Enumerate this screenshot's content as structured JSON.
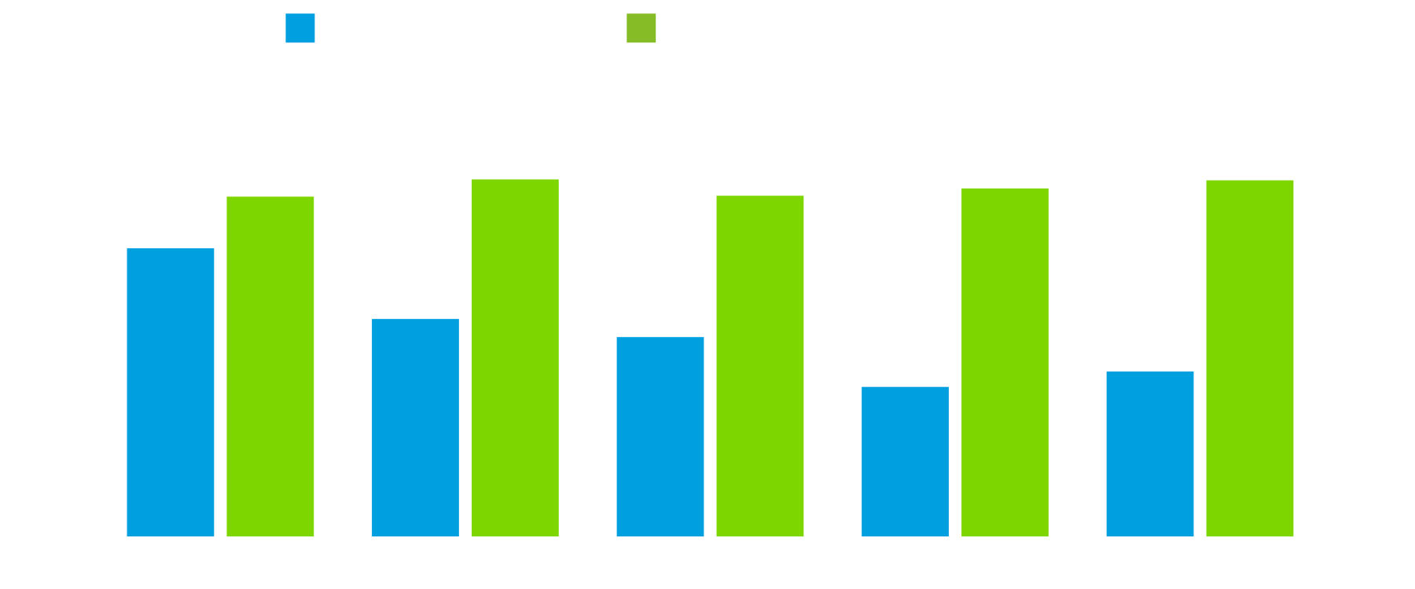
{
  "chart_data": {
    "type": "bar",
    "categories": [
      null,
      null,
      null,
      null,
      null
    ],
    "series": [
      {
        "color": "#009fe0",
        "legend_color": "#009fe0",
        "values": [
          318,
          240,
          220,
          165,
          182
        ]
      },
      {
        "color": "#7ed600",
        "legend_color": "#86bc25",
        "values": [
          375,
          394,
          376,
          384,
          393
        ]
      }
    ],
    "ylim": [
      0,
      400
    ],
    "legend": "top"
  }
}
